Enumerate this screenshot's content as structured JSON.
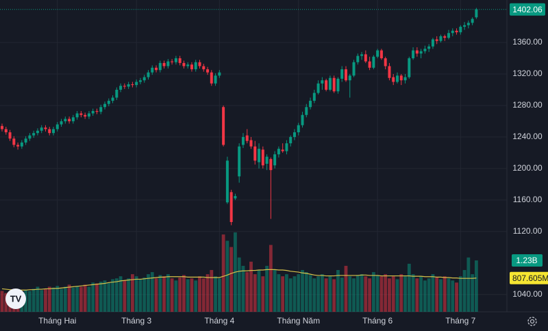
{
  "chart_data": {
    "type": "candlestick",
    "categories": [
      null,
      null,
      null,
      null,
      null,
      null,
      null,
      null,
      null,
      null,
      null,
      null,
      null,
      null,
      "Tháng Hai",
      null,
      null,
      null,
      null,
      null,
      null,
      null,
      null,
      null,
      null,
      null,
      null,
      null,
      null,
      null,
      null,
      null,
      null,
      null,
      "Tháng 3",
      null,
      null,
      null,
      null,
      null,
      null,
      null,
      null,
      null,
      null,
      null,
      null,
      null,
      null,
      null,
      null,
      null,
      null,
      null,
      null,
      "Tháng 4",
      null,
      null,
      null,
      null,
      null,
      null,
      null,
      null,
      null,
      null,
      null,
      null,
      null,
      null,
      null,
      null,
      null,
      null,
      null,
      "Tháng Năm",
      null,
      null,
      null,
      null,
      null,
      null,
      null,
      null,
      null,
      null,
      null,
      null,
      null,
      null,
      null,
      null,
      null,
      null,
      null,
      "Tháng 6",
      null,
      null,
      null,
      null,
      null,
      null,
      null,
      null,
      null,
      null,
      null,
      null,
      null,
      null,
      null,
      null,
      null,
      null,
      null,
      null,
      "Tháng 7",
      null,
      null,
      null,
      null
    ],
    "open": [
      1254,
      1250,
      1246,
      1238,
      1230,
      1228,
      1233,
      1238,
      1242,
      1245,
      1248,
      1252,
      1250,
      1245,
      1250,
      1256,
      1260,
      1263,
      1260,
      1265,
      1270,
      1268,
      1266,
      1270,
      1273,
      1272,
      1278,
      1282,
      1286,
      1290,
      1300,
      1305,
      1304,
      1307,
      1306,
      1310,
      1312,
      1316,
      1322,
      1328,
      1325,
      1334,
      1330,
      1336,
      1335,
      1340,
      1334,
      1330,
      1332,
      1326,
      1335,
      1330,
      1326,
      1322,
      1308,
      1318,
      1278,
      1157,
      1170,
      1162,
      1190,
      1230,
      1242,
      1236,
      1228,
      1208,
      1224,
      1206,
      1212,
      1204,
      1218,
      1224,
      1222,
      1232,
      1240,
      1246,
      1255,
      1268,
      1278,
      1286,
      1296,
      1308,
      1312,
      1300,
      1315,
      1298,
      1314,
      1326,
      1312,
      1318,
      1335,
      1343,
      1345,
      1336,
      1328,
      1342,
      1350,
      1340,
      1330,
      1316,
      1310,
      1318,
      1312,
      1316,
      1340,
      1350,
      1346,
      1349,
      1352,
      1355,
      1364,
      1362,
      1368,
      1366,
      1372,
      1375,
      1373,
      1380,
      1382,
      1385,
      1392
    ],
    "high": [
      1257,
      1253,
      1249,
      1241,
      1233,
      1236,
      1241,
      1245,
      1248,
      1251,
      1255,
      1255,
      1253,
      1253,
      1259,
      1263,
      1266,
      1266,
      1268,
      1273,
      1273,
      1271,
      1273,
      1276,
      1276,
      1281,
      1285,
      1289,
      1293,
      1303,
      1308,
      1308,
      1310,
      1310,
      1313,
      1315,
      1319,
      1325,
      1331,
      1331,
      1337,
      1337,
      1339,
      1339,
      1343,
      1343,
      1337,
      1335,
      1335,
      1338,
      1338,
      1333,
      1329,
      1325,
      1321,
      1325,
      1280,
      1215,
      1173,
      1168,
      1232,
      1245,
      1250,
      1240,
      1235,
      1232,
      1228,
      1218,
      1214,
      1222,
      1228,
      1232,
      1236,
      1242,
      1250,
      1258,
      1272,
      1282,
      1290,
      1300,
      1312,
      1316,
      1314,
      1318,
      1318,
      1316,
      1330,
      1330,
      1320,
      1338,
      1346,
      1348,
      1350,
      1342,
      1344,
      1352,
      1352,
      1342,
      1334,
      1320,
      1322,
      1320,
      1320,
      1342,
      1354,
      1354,
      1352,
      1356,
      1358,
      1366,
      1368,
      1370,
      1370,
      1376,
      1378,
      1378,
      1382,
      1386,
      1388,
      1392,
      1404
    ],
    "low": [
      1247,
      1243,
      1235,
      1227,
      1224,
      1225,
      1230,
      1235,
      1239,
      1242,
      1245,
      1247,
      1242,
      1242,
      1247,
      1253,
      1257,
      1257,
      1257,
      1262,
      1265,
      1263,
      1263,
      1267,
      1269,
      1269,
      1275,
      1279,
      1283,
      1287,
      1297,
      1301,
      1301,
      1303,
      1303,
      1307,
      1309,
      1313,
      1319,
      1322,
      1322,
      1327,
      1327,
      1332,
      1332,
      1331,
      1327,
      1327,
      1323,
      1323,
      1327,
      1323,
      1319,
      1305,
      1305,
      1315,
      1228,
      1155,
      1128,
      1160,
      1182,
      1226,
      1232,
      1225,
      1205,
      1200,
      1200,
      1198,
      1136,
      1200,
      1214,
      1220,
      1218,
      1228,
      1236,
      1242,
      1252,
      1265,
      1275,
      1283,
      1294,
      1300,
      1298,
      1298,
      1296,
      1295,
      1310,
      1310,
      1290,
      1316,
      1332,
      1338,
      1334,
      1325,
      1326,
      1340,
      1338,
      1326,
      1312,
      1306,
      1308,
      1306,
      1308,
      1314,
      1338,
      1342,
      1340,
      1346,
      1348,
      1352,
      1358,
      1360,
      1362,
      1364,
      1368,
      1370,
      1370,
      1376,
      1378,
      1382,
      1390
    ],
    "close": [
      1250,
      1246,
      1238,
      1230,
      1228,
      1233,
      1238,
      1242,
      1245,
      1248,
      1252,
      1250,
      1245,
      1250,
      1256,
      1260,
      1263,
      1260,
      1265,
      1270,
      1268,
      1266,
      1270,
      1273,
      1272,
      1278,
      1282,
      1286,
      1290,
      1300,
      1305,
      1304,
      1307,
      1306,
      1310,
      1312,
      1316,
      1322,
      1328,
      1325,
      1334,
      1330,
      1336,
      1335,
      1340,
      1334,
      1330,
      1332,
      1326,
      1335,
      1330,
      1326,
      1322,
      1308,
      1318,
      1322,
      1230,
      1210,
      1132,
      1165,
      1228,
      1240,
      1235,
      1228,
      1210,
      1225,
      1204,
      1215,
      1198,
      1218,
      1225,
      1222,
      1232,
      1240,
      1246,
      1255,
      1268,
      1278,
      1286,
      1296,
      1308,
      1312,
      1300,
      1315,
      1298,
      1314,
      1326,
      1312,
      1318,
      1335,
      1343,
      1345,
      1336,
      1328,
      1342,
      1350,
      1340,
      1330,
      1315,
      1310,
      1318,
      1312,
      1316,
      1340,
      1350,
      1346,
      1349,
      1352,
      1355,
      1364,
      1362,
      1368,
      1366,
      1372,
      1375,
      1373,
      1380,
      1382,
      1385,
      1390,
      1402.06
    ],
    "volume": [
      0.5,
      0.45,
      0.48,
      0.55,
      0.5,
      0.47,
      0.52,
      0.5,
      0.55,
      0.6,
      0.52,
      0.55,
      0.6,
      0.58,
      0.62,
      0.55,
      0.6,
      0.65,
      0.58,
      0.62,
      0.6,
      0.65,
      0.6,
      0.7,
      0.68,
      0.72,
      0.75,
      0.7,
      0.78,
      0.8,
      0.85,
      0.75,
      0.8,
      0.9,
      0.85,
      0.78,
      0.82,
      0.9,
      0.95,
      0.8,
      0.88,
      0.85,
      0.9,
      0.8,
      0.75,
      0.82,
      0.88,
      0.78,
      0.8,
      0.75,
      0.85,
      0.8,
      0.9,
      1.0,
      0.85,
      0.8,
      1.85,
      1.7,
      1.55,
      1.9,
      1.3,
      1.1,
      0.95,
      1.2,
      0.9,
      1.0,
      0.85,
      1.1,
      1.6,
      1.0,
      0.9,
      0.85,
      0.9,
      0.8,
      0.85,
      0.9,
      1.0,
      0.95,
      0.88,
      0.8,
      0.85,
      0.9,
      0.8,
      0.85,
      0.78,
      1.0,
      0.82,
      1.1,
      0.85,
      0.8,
      0.88,
      0.9,
      0.85,
      0.8,
      0.95,
      0.88,
      0.85,
      0.9,
      0.8,
      0.85,
      0.78,
      0.9,
      0.85,
      1.15,
      0.9,
      0.8,
      0.85,
      0.75,
      0.8,
      0.9,
      0.82,
      0.78,
      0.85,
      0.8,
      0.75,
      0.7,
      0.85,
      1.0,
      1.3,
      0.9,
      1.23
    ],
    "volume_ma": [
      0.55,
      0.54,
      0.53,
      0.53,
      0.52,
      0.52,
      0.52,
      0.53,
      0.53,
      0.54,
      0.54,
      0.55,
      0.55,
      0.56,
      0.56,
      0.57,
      0.58,
      0.59,
      0.6,
      0.61,
      0.62,
      0.63,
      0.64,
      0.65,
      0.66,
      0.67,
      0.68,
      0.7,
      0.71,
      0.72,
      0.74,
      0.75,
      0.76,
      0.77,
      0.78,
      0.78,
      0.79,
      0.8,
      0.81,
      0.82,
      0.83,
      0.83,
      0.84,
      0.84,
      0.84,
      0.84,
      0.84,
      0.83,
      0.83,
      0.83,
      0.83,
      0.83,
      0.82,
      0.82,
      0.82,
      0.82,
      0.85,
      0.88,
      0.92,
      0.95,
      0.97,
      0.98,
      0.98,
      0.99,
      0.99,
      1.0,
      1.0,
      1.01,
      1.01,
      1.01,
      1.0,
      1.0,
      0.99,
      0.97,
      0.96,
      0.95,
      0.93,
      0.92,
      0.9,
      0.88,
      0.87,
      0.87,
      0.86,
      0.86,
      0.86,
      0.87,
      0.87,
      0.87,
      0.87,
      0.87,
      0.87,
      0.88,
      0.88,
      0.87,
      0.87,
      0.87,
      0.86,
      0.86,
      0.86,
      0.86,
      0.86,
      0.86,
      0.86,
      0.86,
      0.85,
      0.85,
      0.85,
      0.84,
      0.84,
      0.84,
      0.83,
      0.83,
      0.82,
      0.82,
      0.81,
      0.81,
      0.8,
      0.8,
      0.8,
      0.8,
      0.807605
    ],
    "volume_last_label": "1.23B",
    "volume_ma_last_label": "807.605M",
    "ylim": [
      1018,
      1414
    ],
    "yticks": [
      {
        "value": 1040,
        "label": "1040.00"
      },
      {
        "value": 1120,
        "label": "1120.00"
      },
      {
        "value": 1160,
        "label": "1160.00"
      },
      {
        "value": 1200,
        "label": "1200.00"
      },
      {
        "value": 1240,
        "label": "1240.00"
      },
      {
        "value": 1280,
        "label": "1280.00"
      },
      {
        "value": 1320,
        "label": "1320.00"
      },
      {
        "value": 1360,
        "label": "1360.00"
      }
    ],
    "vlim": [
      0,
      7.46
    ],
    "grid": true,
    "up_color": "#089981",
    "down_color": "#f23645",
    "ma_color": "#d6c24a"
  }
}
